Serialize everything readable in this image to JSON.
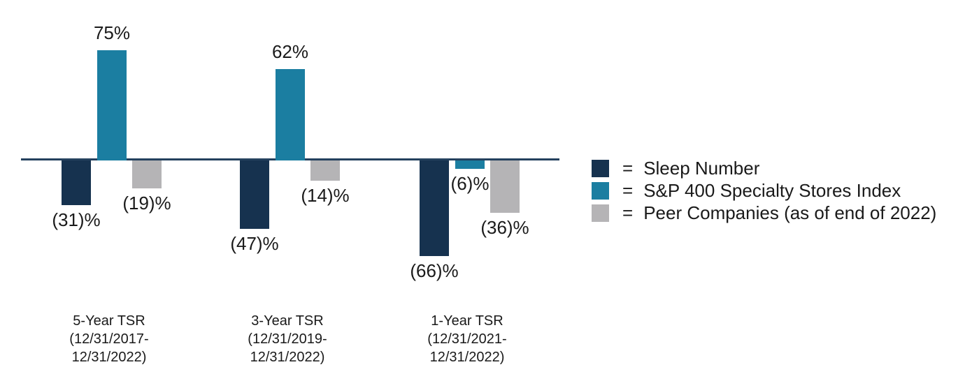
{
  "chart_data": {
    "type": "bar",
    "title": "",
    "xlabel": "",
    "ylabel": "",
    "ylim": [
      -80,
      90
    ],
    "grid": false,
    "legend_position": "right",
    "background": "#FFFFFF",
    "axis_color": "#24415E",
    "text_color": "#1A1A1A",
    "categories": [
      [
        "5-Year TSR",
        "(12/31/2017-",
        "12/31/2022)"
      ],
      [
        "3-Year TSR",
        "(12/31/2019-",
        "12/31/2022)"
      ],
      [
        "1-Year TSR",
        "(12/31/2021-",
        "12/31/2022)"
      ]
    ],
    "series": [
      {
        "name": "Sleep Number",
        "color": "#16324F",
        "values": [
          -31,
          -47,
          -66
        ],
        "value_labels": [
          "(31)%",
          "(47)%",
          "(66)%"
        ]
      },
      {
        "name": "S&P 400 Specialty Stores Index",
        "color": "#1B7EA1",
        "values": [
          75,
          62,
          -6
        ],
        "value_labels": [
          "75%",
          "62%",
          "(6)%"
        ]
      },
      {
        "name": "Peer Companies (as of end of 2022)",
        "color": "#B5B4B6",
        "values": [
          -19,
          -14,
          -36
        ],
        "value_labels": [
          "(19)%",
          "(14)%",
          "(36)%"
        ]
      }
    ]
  },
  "legend": {
    "equals_sign": "=",
    "items": [
      {
        "label": "Sleep Number",
        "color": "#16324F"
      },
      {
        "label": "S&P 400 Specialty Stores Index",
        "color": "#1B7EA1"
      },
      {
        "label": "Peer Companies (as of end of 2022)",
        "color": "#B5B4B6"
      }
    ]
  }
}
